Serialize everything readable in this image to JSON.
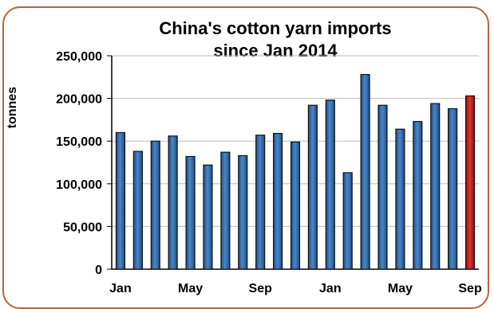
{
  "chart_data": {
    "type": "bar",
    "title_lines": [
      "China's cotton yarn imports",
      "since Jan 2014"
    ],
    "ylabel": "tonnes",
    "xlabel": "",
    "ylim": [
      0,
      250000
    ],
    "yticks": [
      0,
      50000,
      100000,
      150000,
      200000,
      250000
    ],
    "ytick_labels": [
      "0",
      "50,000",
      "100,000",
      "150,000",
      "200,000",
      "250,000"
    ],
    "x_tick_labels": [
      {
        "index": 0,
        "label": "Jan"
      },
      {
        "index": 4,
        "label": "May"
      },
      {
        "index": 8,
        "label": "Sep"
      },
      {
        "index": 12,
        "label": "Jan"
      },
      {
        "index": 16,
        "label": "May"
      },
      {
        "index": 20,
        "label": "Sep"
      }
    ],
    "values": [
      160000,
      138000,
      150000,
      156000,
      132000,
      122000,
      137000,
      133000,
      157000,
      159000,
      149000,
      192000,
      198000,
      113000,
      228000,
      192000,
      164000,
      173000,
      194000,
      188000,
      203000
    ],
    "highlight_index": 20,
    "colors": {
      "bar": "#4a86c8",
      "bar_dark": "#1f4f8a",
      "highlight": "#e0322a",
      "highlight_dark": "#8a1410",
      "frame": "#c0603a"
    },
    "grid": true
  }
}
